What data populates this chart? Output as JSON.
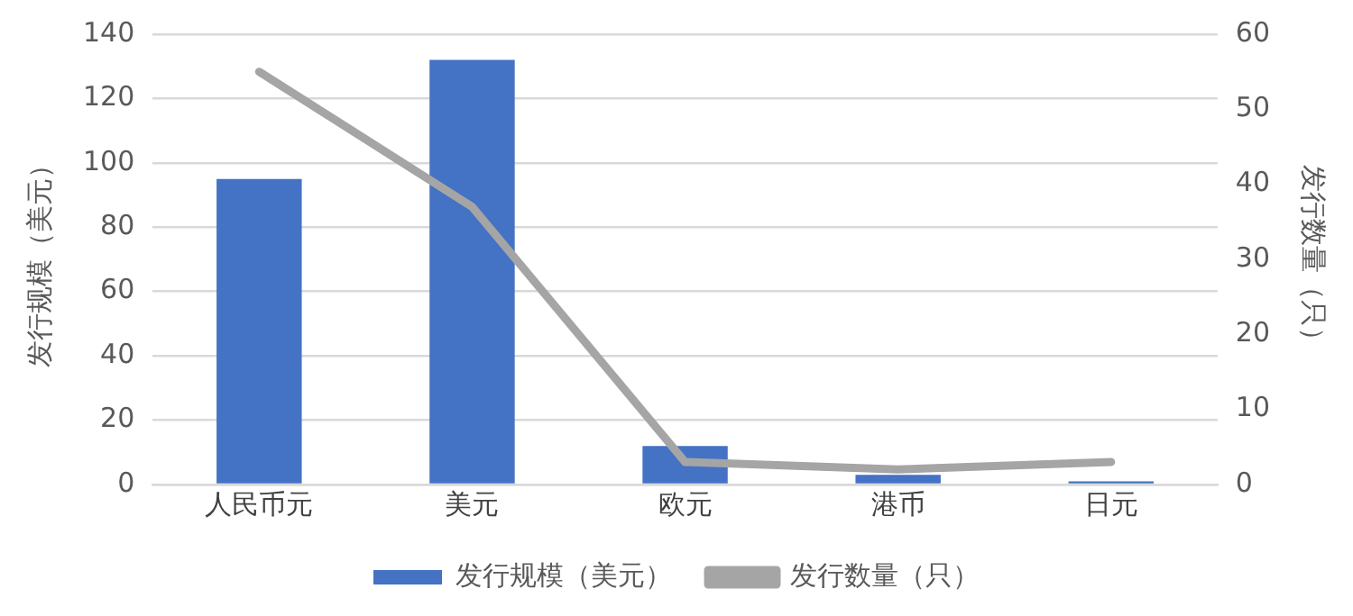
{
  "chart_data": {
    "type": "bar",
    "categories": [
      "人民币元",
      "美元",
      "欧元",
      "港币",
      "日元"
    ],
    "series": [
      {
        "name": "发行规模（美元）",
        "color": "#4472c4",
        "values": [
          95,
          132,
          12,
          3,
          1
        ]
      },
      {
        "name": "发行数量（只）",
        "type": "line",
        "axis": "y2",
        "color": "#a5a5a5",
        "values": [
          55,
          37,
          3,
          2,
          3
        ]
      }
    ],
    "ylabel": "发行规模（美元）",
    "y2label": "发行数量（只）",
    "ylim": [
      0,
      140
    ],
    "yticks": [
      0,
      20,
      40,
      60,
      80,
      100,
      120,
      140
    ],
    "y2lim": [
      0,
      60
    ],
    "y2ticks": [
      0,
      10,
      20,
      30,
      40,
      50,
      60
    ],
    "grid": "y",
    "legend": "bottom",
    "marker": "none"
  }
}
